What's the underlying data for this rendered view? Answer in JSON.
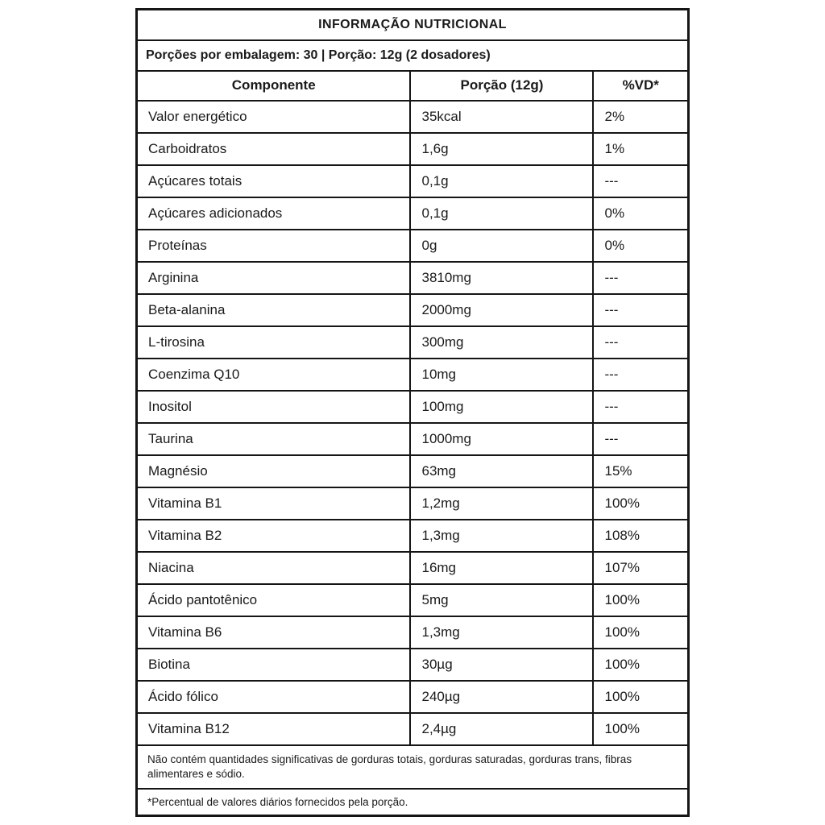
{
  "table": {
    "title": "INFORMAÇÃO NUTRICIONAL",
    "servings_line": "Porções por embalagem: 30 | Porção: 12g (2 dosadores)",
    "columns": [
      "Componente",
      "Porção (12g)",
      "%VD*"
    ],
    "rows": [
      {
        "component": "Valor energético",
        "portion": "35kcal",
        "vd": "2%"
      },
      {
        "component": "Carboidratos",
        "portion": "1,6g",
        "vd": "1%"
      },
      {
        "component": "Açúcares totais",
        "portion": "0,1g",
        "vd": "---"
      },
      {
        "component": "Açúcares adicionados",
        "portion": "0,1g",
        "vd": "0%"
      },
      {
        "component": "Proteínas",
        "portion": "0g",
        "vd": "0%"
      },
      {
        "component": "Arginina",
        "portion": "3810mg",
        "vd": "---"
      },
      {
        "component": "Beta-alanina",
        "portion": "2000mg",
        "vd": "---"
      },
      {
        "component": "L-tirosina",
        "portion": "300mg",
        "vd": "---"
      },
      {
        "component": "Coenzima Q10",
        "portion": "10mg",
        "vd": "---"
      },
      {
        "component": "Inositol",
        "portion": "100mg",
        "vd": "---"
      },
      {
        "component": "Taurina",
        "portion": "1000mg",
        "vd": "---"
      },
      {
        "component": "Magnésio",
        "portion": "63mg",
        "vd": "15%"
      },
      {
        "component": "Vitamina B1",
        "portion": "1,2mg",
        "vd": "100%"
      },
      {
        "component": "Vitamina B2",
        "portion": "1,3mg",
        "vd": "108%"
      },
      {
        "component": "Niacina",
        "portion": "16mg",
        "vd": "107%"
      },
      {
        "component": "Ácido pantotênico",
        "portion": "5mg",
        "vd": "100%"
      },
      {
        "component": "Vitamina B6",
        "portion": "1,3mg",
        "vd": "100%"
      },
      {
        "component": "Biotina",
        "portion": "30µg",
        "vd": "100%"
      },
      {
        "component": "Ácido fólico",
        "portion": "240µg",
        "vd": "100%"
      },
      {
        "component": "Vitamina B12",
        "portion": "2,4µg",
        "vd": "100%"
      }
    ],
    "footnotes": [
      "Não contém quantidades significativas de gorduras totais, gorduras saturadas, gorduras trans, fibras alimentares e sódio.",
      "*Percentual de valores diários fornecidos pela porção."
    ]
  },
  "colors": {
    "border": "#151515",
    "text": "#1a1a1a",
    "background": "#ffffff"
  }
}
